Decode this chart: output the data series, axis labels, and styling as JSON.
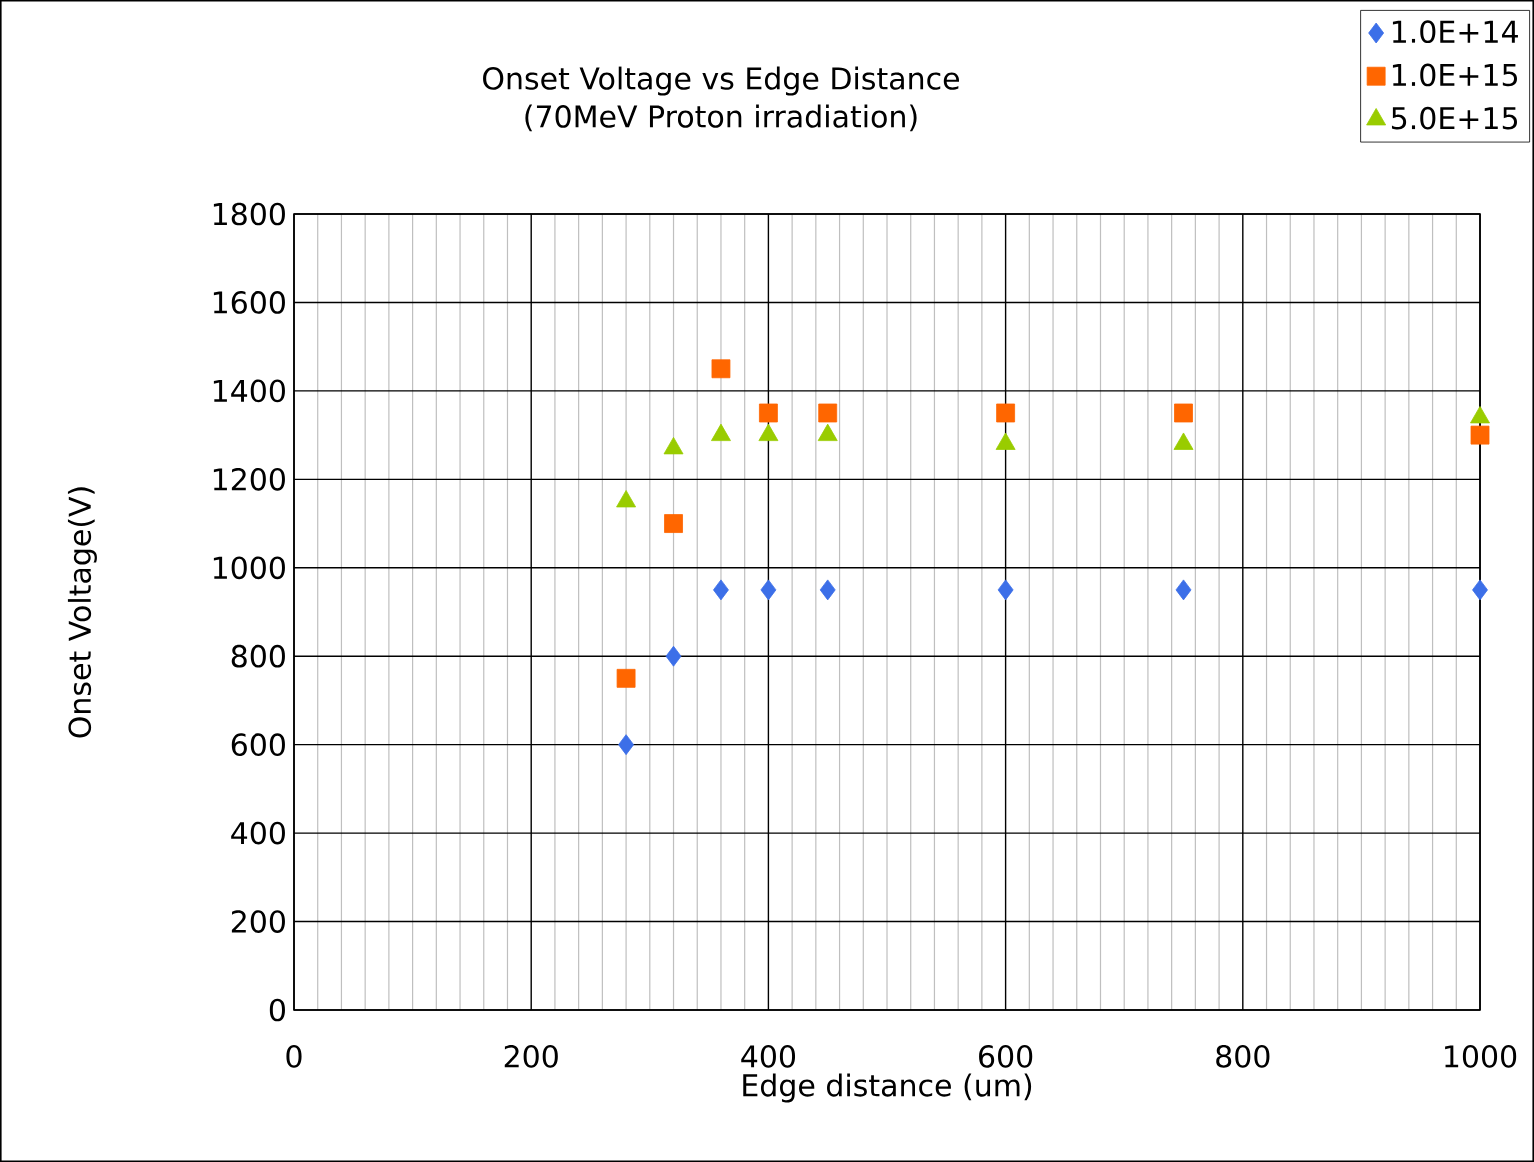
{
  "chart_data": {
    "type": "scatter",
    "title": "Onset Voltage vs Edge Distance",
    "subtitle": "(70MeV Proton irradiation)",
    "xlabel": "Edge distance (um)",
    "ylabel": "Onset Voltage(V)",
    "x": [
      280,
      320,
      360,
      400,
      450,
      600,
      750,
      1000
    ],
    "series": [
      {
        "name": "1.0E+14",
        "color": "#3c6fe8",
        "marker": "diamond",
        "values": [
          600,
          800,
          950,
          950,
          950,
          950,
          950,
          950
        ]
      },
      {
        "name": "1.0E+15",
        "color": "#ff6600",
        "marker": "square",
        "values": [
          750,
          1100,
          1450,
          1350,
          1350,
          1350,
          1350,
          1300
        ]
      },
      {
        "name": "5.0E+15",
        "color": "#99cc00",
        "marker": "triangle",
        "values": [
          1150,
          1270,
          1300,
          1300,
          1300,
          1280,
          1280,
          1340
        ]
      }
    ],
    "xlim": [
      0,
      1000
    ],
    "xticks": [
      0,
      200,
      400,
      600,
      800,
      1000
    ],
    "ylim": [
      0,
      1800
    ],
    "yticks": [
      0,
      200,
      400,
      600,
      800,
      1000,
      1200,
      1400,
      1600,
      1800
    ],
    "grid": true,
    "legend": "top right"
  }
}
